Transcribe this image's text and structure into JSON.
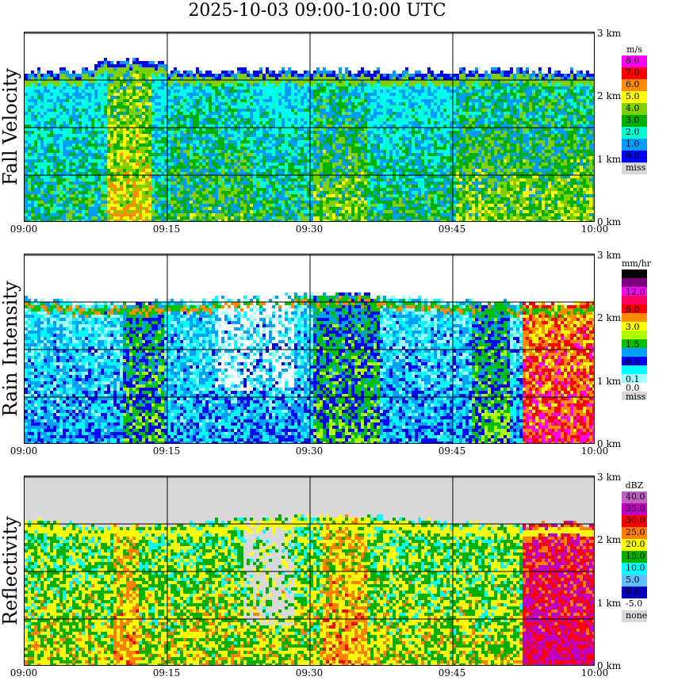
{
  "title": "2025-10-03   09:00-10:00 UTC",
  "chart_data": [
    {
      "type": "heatmap",
      "ylabel": "Fall Velocity",
      "x_ticks": [
        "09:00",
        "09:15",
        "09:30",
        "09:45",
        "10:00"
      ],
      "y_ticks": [
        "0 km",
        "1 km",
        "2 km",
        "3 km"
      ],
      "legend_unit": "m/s",
      "legend": [
        {
          "label": "8.0",
          "color": "#ff00ff"
        },
        {
          "label": "7.0",
          "color": "#ff0000"
        },
        {
          "label": "6.0",
          "color": "#ff8c00"
        },
        {
          "label": "5.0",
          "color": "#ffff00"
        },
        {
          "label": "4.0",
          "color": "#7fd000"
        },
        {
          "label": "3.0",
          "color": "#00b000"
        },
        {
          "label": "2.0",
          "color": "#00ffd0"
        },
        {
          "label": "1.0",
          "color": "#009cff"
        },
        {
          "label": "0.0",
          "color": "#0000ff"
        },
        {
          "label": "miss",
          "color": "#d8d8d8"
        }
      ]
    },
    {
      "type": "heatmap",
      "ylabel": "Rain Intensity",
      "x_ticks": [
        "09:00",
        "09:15",
        "09:30",
        "09:45",
        "10:00"
      ],
      "y_ticks": [
        "0 km",
        "1 km",
        "2 km",
        "3 km"
      ],
      "legend_unit": "mm/hr",
      "legend": [
        {
          "label": "48.0",
          "color": "#000000"
        },
        {
          "label": "",
          "color": "#7f007f"
        },
        {
          "label": "12.0",
          "color": "#ff00ff"
        },
        {
          "label": "",
          "color": "#ff0060"
        },
        {
          "label": "6.0",
          "color": "#ff0000"
        },
        {
          "label": "",
          "color": "#ff8c00"
        },
        {
          "label": "3.0",
          "color": "#ffff00"
        },
        {
          "label": "",
          "color": "#b0ff00"
        },
        {
          "label": "1.5",
          "color": "#00c000"
        },
        {
          "label": "",
          "color": "#00a0ff"
        },
        {
          "label": "0.5",
          "color": "#0000ff"
        },
        {
          "label": "",
          "color": "#00ffff"
        },
        {
          "label": "0.1",
          "color": "#a0ffff"
        },
        {
          "label": "0.0",
          "color": "#ffffff"
        },
        {
          "label": "miss",
          "color": "#d8d8d8"
        }
      ]
    },
    {
      "type": "heatmap",
      "ylabel": "Reflectivity",
      "x_ticks": [
        "09:00",
        "09:15",
        "09:30",
        "09:45",
        "10:00"
      ],
      "y_ticks": [
        "0 km",
        "1 km",
        "2 km",
        "3 km"
      ],
      "legend_unit": "dBZ",
      "legend": [
        {
          "label": "40.0",
          "color": "#c060c0"
        },
        {
          "label": "35.0",
          "color": "#c000c0"
        },
        {
          "label": "30.0",
          "color": "#ff0000"
        },
        {
          "label": "25.0",
          "color": "#ff8000"
        },
        {
          "label": "20.0",
          "color": "#ffff00"
        },
        {
          "label": "15.0",
          "color": "#00b000"
        },
        {
          "label": "10.0",
          "color": "#00ffff"
        },
        {
          "label": "5.0",
          "color": "#60c0ff"
        },
        {
          "label": "0.0",
          "color": "#0000c0"
        },
        {
          "label": "-5.0",
          "color": "#ffffff"
        },
        {
          "label": "none",
          "color": "#d8d8d8"
        }
      ]
    }
  ]
}
